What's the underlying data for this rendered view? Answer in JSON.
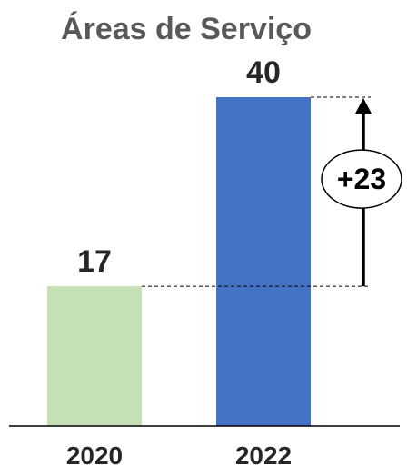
{
  "chart_data": {
    "type": "bar",
    "title": "Áreas de Serviço",
    "categories": [
      "2020",
      "2022"
    ],
    "values": [
      17,
      40
    ],
    "colors": [
      "#c5e0b4",
      "#4472c4"
    ],
    "ylim": [
      0,
      40
    ],
    "grid": false,
    "legend": "none",
    "annotation": {
      "label": "+23",
      "from_value": 17,
      "to_value": 40
    }
  }
}
